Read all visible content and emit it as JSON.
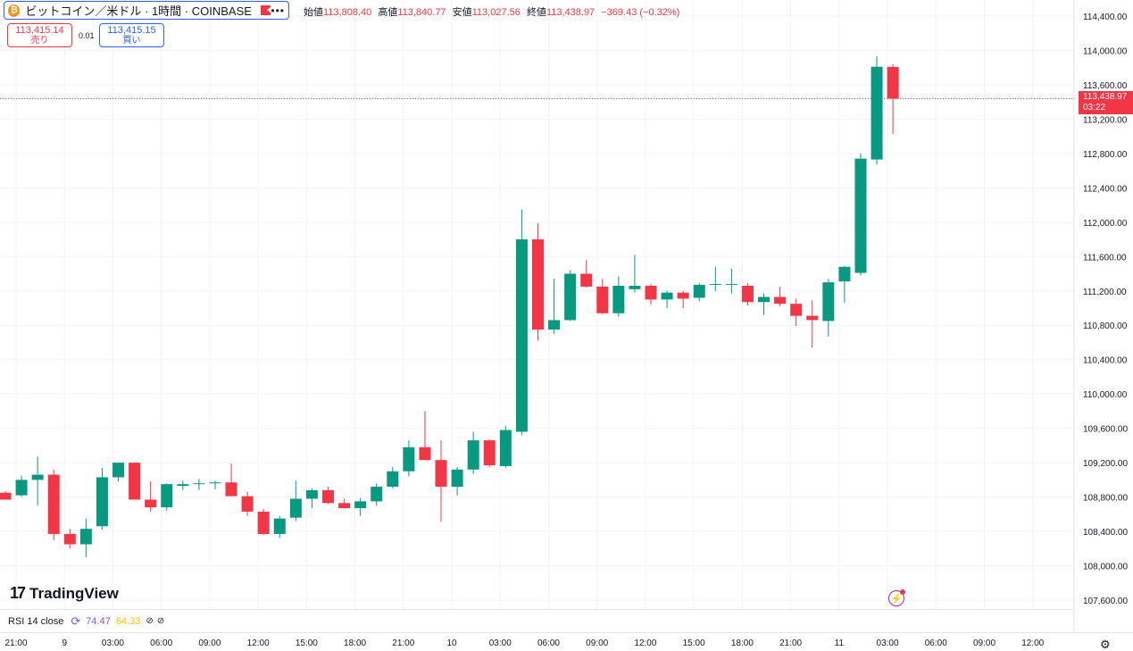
{
  "symbol": {
    "icon": "bitcoin-icon",
    "title": "ビットコイン／米ドル · 1時間 · COINBASE",
    "more": "•••"
  },
  "ohlc": {
    "open_label": "始値",
    "open": "113,808.40",
    "high_label": "高値",
    "high": "113,840.77",
    "low_label": "安値",
    "low": "113,027.56",
    "close_label": "終値",
    "close": "113,438.97",
    "change": "−369.43 (−0.32%)"
  },
  "bid": {
    "price": "113,415.14",
    "label": "売り"
  },
  "ask": {
    "price": "113,415.15",
    "label": "買い"
  },
  "spread": "0.01",
  "price_tag": {
    "price": "113,438.97",
    "countdown": "03:22"
  },
  "logo": {
    "mark": "17",
    "text": "TradingView"
  },
  "rsi": {
    "name": "RSI 14 close",
    "value": "74.47",
    "ma": "64.33"
  },
  "colors": {
    "up": "#089981",
    "down": "#f23645",
    "accent": "#2962ff",
    "rsi": "#7e57c2",
    "rsi_ma": "#f7c600"
  },
  "chart_data": {
    "type": "candlestick",
    "y_ticks": [
      107600,
      108000,
      108400,
      108800,
      109200,
      109600,
      110000,
      110400,
      110800,
      111200,
      111600,
      112000,
      112400,
      112800,
      113200,
      113600,
      114000,
      114400
    ],
    "y_tick_labels": [
      "107,600.00",
      "108,000.00",
      "108,400.00",
      "108,800.00",
      "109,200.00",
      "109,600.00",
      "110,000.00",
      "110,400.00",
      "110,800.00",
      "111,200.00",
      "111,600.00",
      "112,000.00",
      "112,400.00",
      "112,800.00",
      "113,200.00",
      "113,600.00",
      "114,000.00",
      "114,400.00"
    ],
    "x_labels": [
      "21:00",
      "9",
      "03:00",
      "06:00",
      "09:00",
      "12:00",
      "15:00",
      "18:00",
      "21:00",
      "10",
      "03:00",
      "06:00",
      "09:00",
      "12:00",
      "15:00",
      "18:00",
      "21:00",
      "11",
      "03:00",
      "06:00",
      "09:00",
      "12:00"
    ],
    "current_price": 113438.97,
    "candles": [
      {
        "o": 108850,
        "h": 108870,
        "l": 108770,
        "c": 108770
      },
      {
        "o": 108820,
        "h": 109050,
        "l": 108800,
        "c": 109000
      },
      {
        "o": 109000,
        "h": 109270,
        "l": 108700,
        "c": 109060
      },
      {
        "o": 109060,
        "h": 109120,
        "l": 108300,
        "c": 108370
      },
      {
        "o": 108370,
        "h": 108430,
        "l": 108200,
        "c": 108250
      },
      {
        "o": 108250,
        "h": 108550,
        "l": 108100,
        "c": 108430
      },
      {
        "o": 108460,
        "h": 109140,
        "l": 108420,
        "c": 109030
      },
      {
        "o": 109030,
        "h": 109200,
        "l": 108980,
        "c": 109200
      },
      {
        "o": 109200,
        "h": 109200,
        "l": 108800,
        "c": 108770
      },
      {
        "o": 108770,
        "h": 108980,
        "l": 108630,
        "c": 108680
      },
      {
        "o": 108680,
        "h": 108960,
        "l": 108640,
        "c": 108950
      },
      {
        "o": 108930,
        "h": 108990,
        "l": 108880,
        "c": 108950
      },
      {
        "o": 108950,
        "h": 109010,
        "l": 108880,
        "c": 108960
      },
      {
        "o": 108960,
        "h": 108990,
        "l": 108890,
        "c": 108970
      },
      {
        "o": 108970,
        "h": 109190,
        "l": 108850,
        "c": 108810
      },
      {
        "o": 108810,
        "h": 108860,
        "l": 108580,
        "c": 108630
      },
      {
        "o": 108630,
        "h": 108660,
        "l": 108360,
        "c": 108370
      },
      {
        "o": 108370,
        "h": 108580,
        "l": 108320,
        "c": 108550
      },
      {
        "o": 108560,
        "h": 108990,
        "l": 108520,
        "c": 108780
      },
      {
        "o": 108780,
        "h": 108900,
        "l": 108670,
        "c": 108880
      },
      {
        "o": 108880,
        "h": 108920,
        "l": 108720,
        "c": 108730
      },
      {
        "o": 108730,
        "h": 108780,
        "l": 108670,
        "c": 108670
      },
      {
        "o": 108670,
        "h": 108790,
        "l": 108580,
        "c": 108750
      },
      {
        "o": 108750,
        "h": 108960,
        "l": 108700,
        "c": 108920
      },
      {
        "o": 108920,
        "h": 109150,
        "l": 108900,
        "c": 109100
      },
      {
        "o": 109100,
        "h": 109460,
        "l": 109040,
        "c": 109380
      },
      {
        "o": 109380,
        "h": 109800,
        "l": 109250,
        "c": 109230
      },
      {
        "o": 109230,
        "h": 109460,
        "l": 108510,
        "c": 108920
      },
      {
        "o": 108920,
        "h": 109150,
        "l": 108820,
        "c": 109120
      },
      {
        "o": 109120,
        "h": 109560,
        "l": 109070,
        "c": 109460
      },
      {
        "o": 109460,
        "h": 109470,
        "l": 109150,
        "c": 109170
      },
      {
        "o": 109160,
        "h": 109630,
        "l": 109140,
        "c": 109580
      },
      {
        "o": 109560,
        "h": 112150,
        "l": 109520,
        "c": 111800
      },
      {
        "o": 111800,
        "h": 111990,
        "l": 110620,
        "c": 110750
      },
      {
        "o": 110750,
        "h": 111340,
        "l": 110700,
        "c": 110860
      },
      {
        "o": 110860,
        "h": 111440,
        "l": 110850,
        "c": 111400
      },
      {
        "o": 111400,
        "h": 111560,
        "l": 111240,
        "c": 111250
      },
      {
        "o": 111250,
        "h": 111340,
        "l": 110930,
        "c": 110940
      },
      {
        "o": 110940,
        "h": 111370,
        "l": 110900,
        "c": 111260
      },
      {
        "o": 111220,
        "h": 111620,
        "l": 111180,
        "c": 111260
      },
      {
        "o": 111260,
        "h": 111280,
        "l": 111040,
        "c": 111100
      },
      {
        "o": 111100,
        "h": 111200,
        "l": 111000,
        "c": 111180
      },
      {
        "o": 111180,
        "h": 111200,
        "l": 111000,
        "c": 111110
      },
      {
        "o": 111120,
        "h": 111290,
        "l": 111080,
        "c": 111270
      },
      {
        "o": 111270,
        "h": 111480,
        "l": 111200,
        "c": 111280
      },
      {
        "o": 111280,
        "h": 111460,
        "l": 111170,
        "c": 111280
      },
      {
        "o": 111260,
        "h": 111290,
        "l": 111030,
        "c": 111070
      },
      {
        "o": 111070,
        "h": 111170,
        "l": 110920,
        "c": 111130
      },
      {
        "o": 111130,
        "h": 111250,
        "l": 111020,
        "c": 111050
      },
      {
        "o": 111050,
        "h": 111110,
        "l": 110790,
        "c": 110910
      },
      {
        "o": 110910,
        "h": 111090,
        "l": 110540,
        "c": 110860
      },
      {
        "o": 110850,
        "h": 111340,
        "l": 110670,
        "c": 111300
      },
      {
        "o": 111310,
        "h": 111490,
        "l": 111060,
        "c": 111480
      },
      {
        "o": 111410,
        "h": 112800,
        "l": 111380,
        "c": 112740
      },
      {
        "o": 112730,
        "h": 113930,
        "l": 112670,
        "c": 113810
      },
      {
        "o": 113808.4,
        "h": 113840.77,
        "l": 113027.56,
        "c": 113438.97
      }
    ]
  }
}
